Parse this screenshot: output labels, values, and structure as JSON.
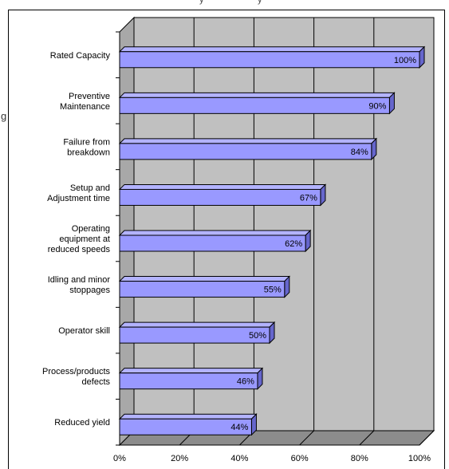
{
  "chart_data": {
    "type": "bar",
    "orientation": "horizontal",
    "style": "3d",
    "categories": [
      [
        "Rated Capacity"
      ],
      [
        "Preventive",
        "Maintenance"
      ],
      [
        "Failure from",
        "breakdown"
      ],
      [
        "Setup and",
        "Adjustment time"
      ],
      [
        "Operating",
        "equipment at",
        "reduced speeds"
      ],
      [
        "Idling and minor",
        "stoppages"
      ],
      [
        "Operator skill"
      ],
      [
        "Process/products",
        "defects"
      ],
      [
        "Reduced yield"
      ]
    ],
    "values": [
      100,
      90,
      84,
      67,
      62,
      55,
      50,
      46,
      44
    ],
    "data_labels": [
      "100%",
      "90%",
      "84%",
      "67%",
      "62%",
      "55%",
      "50%",
      "46%",
      "44%"
    ],
    "xticks": [
      "0%",
      "20%",
      "40%",
      "60%",
      "80%",
      "100%"
    ],
    "xlim": [
      0,
      100
    ],
    "grid": true,
    "title": "",
    "xlabel": "",
    "ylabel": "",
    "colors": {
      "bar": "#9999ff",
      "bar_top": "#b3b3ff",
      "bar_side": "#6666cc",
      "plot_wall": "#c0c0c0",
      "gridline": "#000000"
    }
  },
  "clipped_text": {
    "top_fragments": [
      "y",
      "y"
    ],
    "side_fragment": "g"
  }
}
